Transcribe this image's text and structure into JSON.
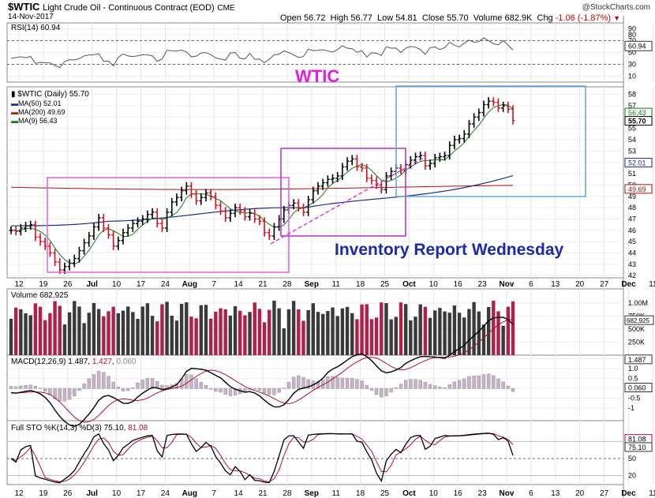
{
  "header": {
    "symbol": "$WTIC",
    "name": "Light Crude Oil - Continuous Contract (EOD)",
    "exchange": "CME",
    "date": "14-Nov-2017",
    "watermark": "@StockCharts.com",
    "open_label": "Open",
    "open": "56.72",
    "high_label": "High",
    "high": "56.77",
    "low_label": "Low",
    "low": "54.81",
    "close_label": "Close",
    "close": "55.70",
    "volume_label": "Volume",
    "volume": "682.9K",
    "chg_label": "Chg",
    "chg": "-1.06 (-1.87%)",
    "chg_color": "#cc0000"
  },
  "annotations": {
    "title": "WTIC",
    "title_color": "#e020e0",
    "note": "Inventory Report Wednesday",
    "note_color": "#1a2aa8"
  },
  "panels": {
    "rsi": {
      "label": "RSI(14) 60.94",
      "value_tag": "60.94",
      "ticks": [
        "90",
        "80",
        "70",
        "50",
        "30",
        "10"
      ],
      "levels": [
        70,
        30
      ]
    },
    "price": {
      "label": "$WTIC (Daily) 55.70",
      "legend": [
        {
          "name": "MA(50) 52.01",
          "color": "#1c2a8c"
        },
        {
          "name": "MA(200) 49.69",
          "color": "#b01010"
        },
        {
          "name": "MA(9) 56.43",
          "color": "#118011"
        }
      ],
      "value_tags": [
        "56.43",
        "55.70",
        "52.01",
        "49.69"
      ],
      "ticks": [
        "58",
        "57",
        "56",
        "55",
        "54",
        "53",
        "52",
        "51",
        "50",
        "49",
        "48",
        "47",
        "46",
        "45",
        "44",
        "43",
        "42"
      ]
    },
    "volume": {
      "label": "Volume 682,925",
      "ticks": [
        "1.00M",
        "750K",
        "500K",
        "250K"
      ],
      "value_tag": "682,925"
    },
    "macd": {
      "label": "MACD(12,26,9) 1.487, 1.427, 0.060",
      "label_prefix": "MACD(12,26,9)",
      "v1": "1.487",
      "v2": "1.427",
      "v3": "0.060",
      "ticks": [
        "1.5",
        "1.0",
        "0.5",
        "0.0",
        "-0.5",
        "-1"
      ],
      "value_tags": [
        "1.487",
        "0.060"
      ]
    },
    "sto": {
      "label": "Full STO %K(14,3) %D(3) 75.10, 81.08",
      "label_prefix": "Full STO %K(14,3) %D(3)",
      "v1": "75.10",
      "v2": "81.08",
      "ticks": [
        "80",
        "50",
        "20"
      ],
      "value_tags": [
        "81.08",
        "75.10"
      ]
    }
  },
  "x_axis": {
    "labels": [
      {
        "t": "12",
        "b": false
      },
      {
        "t": "19",
        "b": false
      },
      {
        "t": "26",
        "b": false
      },
      {
        "t": "Jul",
        "b": true
      },
      {
        "t": "10",
        "b": false
      },
      {
        "t": "17",
        "b": false
      },
      {
        "t": "24",
        "b": false
      },
      {
        "t": "Aug",
        "b": true
      },
      {
        "t": "7",
        "b": false
      },
      {
        "t": "14",
        "b": false
      },
      {
        "t": "21",
        "b": false
      },
      {
        "t": "28",
        "b": false
      },
      {
        "t": "Sep",
        "b": true
      },
      {
        "t": "11",
        "b": false
      },
      {
        "t": "18",
        "b": false
      },
      {
        "t": "25",
        "b": false
      },
      {
        "t": "Oct",
        "b": true
      },
      {
        "t": "10",
        "b": false
      },
      {
        "t": "16",
        "b": false
      },
      {
        "t": "23",
        "b": false
      },
      {
        "t": "Nov",
        "b": true
      },
      {
        "t": "6",
        "b": false
      },
      {
        "t": "13",
        "b": false
      },
      {
        "t": "20",
        "b": false
      },
      {
        "t": "27",
        "b": false
      },
      {
        "t": "Dec",
        "b": true
      },
      {
        "t": "11",
        "b": false
      }
    ]
  },
  "chart_data": {
    "type": "line",
    "title": "$WTIC Light Crude Oil - Continuous Contract (EOD) CME",
    "ylim": [
      42,
      58
    ],
    "closes": [
      46.0,
      45.9,
      46.2,
      46.4,
      46.5,
      45.4,
      45.0,
      44.6,
      44.0,
      43.2,
      42.5,
      42.8,
      43.1,
      43.5,
      44.2,
      44.9,
      45.5,
      46.3,
      47.1,
      46.2,
      45.6,
      44.6,
      45.1,
      45.8,
      46.2,
      46.6,
      46.8,
      47.0,
      47.4,
      47.6,
      46.6,
      46.2,
      47.6,
      48.5,
      48.9,
      49.5,
      49.9,
      49.2,
      48.6,
      48.9,
      49.3,
      49.0,
      48.2,
      47.7,
      47.1,
      47.5,
      48.0,
      47.7,
      47.2,
      47.5,
      47.0,
      46.8,
      45.8,
      45.5,
      46.3,
      47.0,
      47.8,
      48.2,
      48.4,
      48.0,
      47.6,
      48.7,
      49.5,
      49.9,
      50.2,
      50.5,
      50.6,
      50.8,
      51.6,
      52.1,
      52.3,
      51.6,
      51.5,
      50.6,
      50.4,
      50.0,
      49.6,
      50.8,
      51.2,
      51.5,
      51.3,
      51.8,
      52.2,
      52.5,
      52.6,
      51.7,
      51.9,
      52.4,
      52.5,
      52.6,
      53.5,
      54.0,
      54.1,
      54.5,
      55.4,
      56.0,
      56.4,
      57.1,
      57.4,
      57.3,
      56.8,
      57.0,
      56.7,
      55.7
    ],
    "series": [
      {
        "name": "MA(9)",
        "last": 56.43
      },
      {
        "name": "MA(50)",
        "last": 52.01
      },
      {
        "name": "MA(200)",
        "last": 49.69
      }
    ],
    "x_start": "Jun 12, 2017",
    "x_end": "Nov 14, 2017"
  }
}
